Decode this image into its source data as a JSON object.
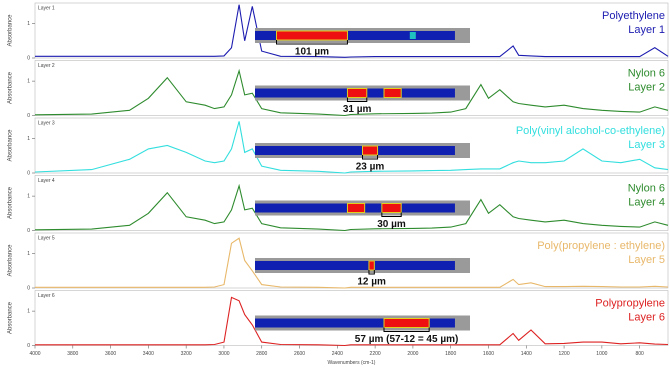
{
  "chart_data": [
    {
      "type": "line",
      "panel_label": "Layer 1",
      "y_label": "Absorbance",
      "layer_label": "Layer 1",
      "measurement": "101 µm",
      "xlim": [
        4000,
        650
      ],
      "ylim": [
        0,
        1.6
      ],
      "yticks": [
        0,
        1
      ],
      "x": [
        4000,
        3700,
        3500,
        3400,
        3300,
        3200,
        3100,
        3050,
        3000,
        2960,
        2920,
        2890,
        2850,
        2800,
        2700,
        2500,
        2360,
        2330,
        2200,
        2000,
        1900,
        1800,
        1720,
        1640,
        1600,
        1540,
        1470,
        1440,
        1375,
        1300,
        1200,
        1100,
        1000,
        900,
        800,
        720,
        650
      ],
      "series": [
        {
          "name": "Polyethylene",
          "color": "#1c1cb0",
          "values": [
            0.05,
            0.05,
            0.05,
            0.05,
            0.05,
            0.05,
            0.05,
            0.05,
            0.06,
            0.3,
            1.55,
            0.5,
            1.5,
            0.2,
            0.05,
            0.04,
            0.02,
            0.03,
            0.04,
            0.04,
            0.04,
            0.04,
            0.04,
            0.04,
            0.04,
            0.04,
            0.35,
            0.08,
            0.06,
            0.04,
            0.04,
            0.04,
            0.04,
            0.04,
            0.04,
            0.3,
            0.05
          ]
        }
      ]
    },
    {
      "type": "line",
      "panel_label": "Layer 2",
      "y_label": "Absorbance",
      "layer_label": "Layer 2",
      "measurement": "31 µm",
      "xlim": [
        4000,
        650
      ],
      "ylim": [
        0,
        1.6
      ],
      "yticks": [
        0,
        1
      ],
      "x": [
        4000,
        3700,
        3500,
        3400,
        3300,
        3200,
        3100,
        3050,
        3000,
        2960,
        2920,
        2890,
        2850,
        2800,
        2700,
        2500,
        2360,
        2330,
        2200,
        2000,
        1900,
        1800,
        1720,
        1640,
        1600,
        1540,
        1470,
        1440,
        1375,
        1300,
        1200,
        1100,
        1000,
        900,
        800,
        720,
        650
      ],
      "series": [
        {
          "name": "Nylon 6",
          "color": "#2e8b2e",
          "values": [
            0.02,
            0.04,
            0.15,
            0.5,
            1.1,
            0.4,
            0.3,
            0.2,
            0.25,
            0.6,
            1.3,
            0.6,
            0.65,
            0.2,
            0.08,
            0.04,
            0.0,
            0.03,
            0.05,
            0.06,
            0.07,
            0.1,
            0.2,
            0.9,
            0.5,
            0.75,
            0.4,
            0.35,
            0.3,
            0.25,
            0.3,
            0.2,
            0.15,
            0.12,
            0.1,
            0.25,
            0.15
          ]
        }
      ]
    },
    {
      "type": "line",
      "panel_label": "Layer 3",
      "y_label": "Absorbance",
      "layer_label": "Layer 3",
      "measurement": "23 µm",
      "xlim": [
        4000,
        650
      ],
      "ylim": [
        0,
        1.6
      ],
      "yticks": [
        0,
        1
      ],
      "x": [
        4000,
        3700,
        3500,
        3400,
        3300,
        3200,
        3100,
        3050,
        3000,
        2960,
        2920,
        2890,
        2850,
        2800,
        2700,
        2500,
        2360,
        2330,
        2200,
        2000,
        1900,
        1800,
        1720,
        1640,
        1600,
        1540,
        1470,
        1440,
        1375,
        1300,
        1200,
        1100,
        1000,
        900,
        800,
        720,
        650
      ],
      "series": [
        {
          "name": "Poly(vinyl alcohol-co-ethylene)",
          "color": "#33dede",
          "values": [
            0.03,
            0.1,
            0.4,
            0.7,
            0.8,
            0.6,
            0.35,
            0.3,
            0.35,
            0.7,
            1.5,
            0.6,
            0.7,
            0.2,
            0.08,
            0.05,
            0.0,
            0.03,
            0.05,
            0.06,
            0.07,
            0.08,
            0.1,
            0.12,
            0.12,
            0.12,
            0.3,
            0.35,
            0.3,
            0.3,
            0.35,
            0.7,
            0.35,
            0.3,
            0.4,
            0.15,
            0.1
          ]
        }
      ]
    },
    {
      "type": "line",
      "panel_label": "Layer 4",
      "y_label": "Absorbance",
      "layer_label": "Layer 4",
      "measurement": "30 µm",
      "xlim": [
        4000,
        650
      ],
      "ylim": [
        0,
        1.6
      ],
      "yticks": [
        0,
        1
      ],
      "x": [
        4000,
        3700,
        3500,
        3400,
        3300,
        3200,
        3100,
        3050,
        3000,
        2960,
        2920,
        2890,
        2850,
        2800,
        2700,
        2500,
        2360,
        2330,
        2200,
        2000,
        1900,
        1800,
        1720,
        1640,
        1600,
        1540,
        1470,
        1440,
        1375,
        1300,
        1200,
        1100,
        1000,
        900,
        800,
        720,
        650
      ],
      "series": [
        {
          "name": "Nylon 6",
          "color": "#2e8b2e",
          "values": [
            0.02,
            0.04,
            0.15,
            0.5,
            1.1,
            0.4,
            0.3,
            0.2,
            0.25,
            0.6,
            1.3,
            0.6,
            0.65,
            0.2,
            0.08,
            0.04,
            0.0,
            0.03,
            0.05,
            0.06,
            0.07,
            0.1,
            0.2,
            0.9,
            0.5,
            0.75,
            0.4,
            0.35,
            0.3,
            0.25,
            0.3,
            0.2,
            0.15,
            0.12,
            0.1,
            0.25,
            0.15
          ]
        }
      ]
    },
    {
      "type": "line",
      "panel_label": "Layer 5",
      "y_label": "Absorbance",
      "layer_label": "Layer 5",
      "measurement": "12 µm",
      "xlim": [
        4000,
        650
      ],
      "ylim": [
        0,
        1.6
      ],
      "yticks": [
        0,
        1
      ],
      "x": [
        4000,
        3700,
        3500,
        3400,
        3300,
        3200,
        3100,
        3050,
        3000,
        2960,
        2920,
        2890,
        2850,
        2800,
        2700,
        2500,
        2360,
        2330,
        2200,
        2000,
        1900,
        1800,
        1720,
        1640,
        1600,
        1540,
        1470,
        1440,
        1375,
        1300,
        1200,
        1100,
        1000,
        900,
        800,
        720,
        650
      ],
      "series": [
        {
          "name": "Poly(propylene : ethylene)",
          "color": "#e8b86a",
          "values": [
            0.02,
            0.02,
            0.02,
            0.02,
            0.02,
            0.02,
            0.02,
            0.03,
            0.1,
            1.3,
            1.45,
            0.8,
            0.5,
            0.1,
            0.03,
            0.02,
            0.0,
            0.02,
            0.02,
            0.02,
            0.02,
            0.02,
            0.02,
            0.02,
            0.02,
            0.02,
            0.25,
            0.1,
            0.15,
            0.04,
            0.04,
            0.05,
            0.04,
            0.03,
            0.03,
            0.05,
            0.03
          ]
        }
      ]
    },
    {
      "type": "line",
      "panel_label": "Layer 6",
      "y_label": "Absorbance",
      "layer_label": "Layer 6",
      "measurement": "57 µm (57-12 = 45 µm)",
      "xlim": [
        4000,
        650
      ],
      "ylim": [
        0,
        1.6
      ],
      "yticks": [
        0,
        1
      ],
      "x": [
        4000,
        3700,
        3500,
        3400,
        3300,
        3200,
        3100,
        3050,
        3000,
        2960,
        2920,
        2890,
        2850,
        2800,
        2700,
        2500,
        2360,
        2330,
        2200,
        2000,
        1900,
        1800,
        1720,
        1640,
        1600,
        1540,
        1470,
        1440,
        1375,
        1300,
        1200,
        1100,
        1000,
        900,
        800,
        720,
        650
      ],
      "series": [
        {
          "name": "Polypropylene",
          "color": "#dd2222",
          "values": [
            0.02,
            0.02,
            0.02,
            0.02,
            0.02,
            0.02,
            0.02,
            0.03,
            0.1,
            1.4,
            1.3,
            0.9,
            0.6,
            0.1,
            0.03,
            0.02,
            0.0,
            0.02,
            0.02,
            0.02,
            0.02,
            0.02,
            0.02,
            0.02,
            0.02,
            0.02,
            0.35,
            0.15,
            0.45,
            0.05,
            0.06,
            0.1,
            0.1,
            0.05,
            0.08,
            0.04,
            0.03
          ]
        }
      ],
      "xticks": [
        4000,
        3800,
        3600,
        3400,
        3200,
        3000,
        2800,
        2600,
        2400,
        2200,
        2000,
        1800,
        1600,
        1400,
        1200,
        1000,
        800
      ],
      "x_label": "Wavenumbers (cm-1)"
    }
  ]
}
